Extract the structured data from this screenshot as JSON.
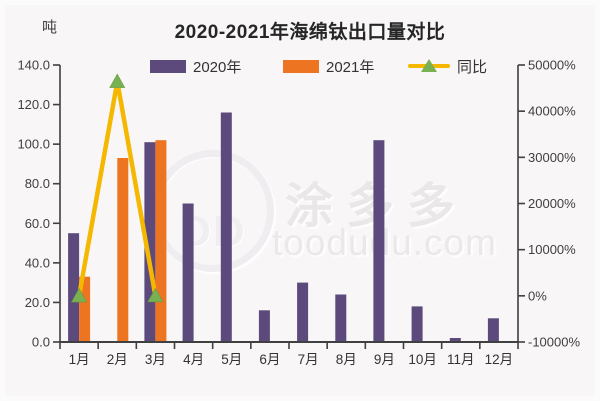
{
  "page": {
    "background": "#f8f6f7"
  },
  "title": "2020-2021年海绵钛出口量对比",
  "unit_label": "吨",
  "legend": [
    {
      "label": "2020年",
      "type": "bar",
      "color": "#5c4a7d"
    },
    {
      "label": "2021年",
      "type": "bar",
      "color": "#ed7420"
    },
    {
      "label": "同比",
      "type": "line",
      "color": "#f5b800",
      "marker_color": "#79b051"
    }
  ],
  "watermark": {
    "logo_text": "DD",
    "brand_text": "涂多多",
    "url_text": "toodudu.com"
  },
  "chart_data": {
    "type": "bar",
    "title": "2020-2021年海绵钛出口量对比",
    "categories": [
      "1月",
      "2月",
      "3月",
      "4月",
      "5月",
      "6月",
      "7月",
      "8月",
      "9月",
      "10月",
      "11月",
      "12月"
    ],
    "series": [
      {
        "name": "2020年",
        "type": "bar",
        "axis": "left",
        "color": "#5c4a7d",
        "values": [
          55,
          0,
          101,
          70,
          116,
          16,
          30,
          24,
          102,
          18,
          2,
          12
        ]
      },
      {
        "name": "2021年",
        "type": "bar",
        "axis": "left",
        "color": "#ed7420",
        "values": [
          33,
          93,
          102,
          null,
          null,
          null,
          null,
          null,
          null,
          null,
          null,
          null
        ]
      },
      {
        "name": "同比",
        "type": "line",
        "axis": "right",
        "color": "#f5b800",
        "marker": "triangle",
        "marker_color": "#79b051",
        "values": [
          -40,
          46400,
          1,
          null,
          null,
          null,
          null,
          null,
          null,
          null,
          null,
          null
        ]
      }
    ],
    "left_axis": {
      "unit": "吨",
      "min": 0,
      "max": 140,
      "step": 20,
      "tick_labels": [
        "0.0",
        "20.0",
        "40.0",
        "60.0",
        "80.0",
        "100.0",
        "120.0",
        "140.0"
      ]
    },
    "right_axis": {
      "min": -10000,
      "max": 50000,
      "step": 10000,
      "tick_labels": [
        "-10000%",
        "0%",
        "10000%",
        "20000%",
        "30000%",
        "40000%",
        "50000%"
      ]
    },
    "legend_position": "top",
    "grid": false
  }
}
